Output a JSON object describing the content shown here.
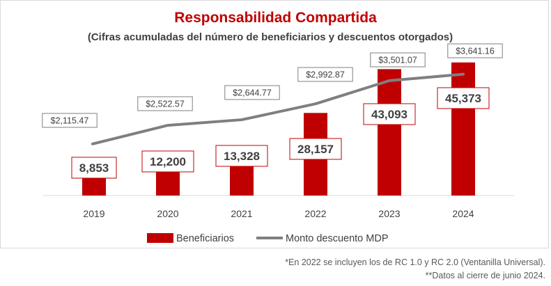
{
  "chart_data": {
    "type": "bar",
    "title": "Responsabilidad Compartida",
    "subtitle": "(Cifras acumuladas del número de beneficiarios y descuentos otorgados)",
    "categories": [
      "2019",
      "2020",
      "2021",
      "2022",
      "2023",
      "2024"
    ],
    "series": [
      {
        "name": "Beneficiarios",
        "type": "bar",
        "values": [
          8853,
          12200,
          13328,
          28157,
          43093,
          45373
        ],
        "labels": [
          "8,853",
          "12,200",
          "13,328",
          "28,157",
          "43,093",
          "45,373"
        ],
        "color": "#c00000"
      },
      {
        "name": "Monto descuento MDP",
        "type": "line",
        "values": [
          2115.47,
          2522.57,
          2644.77,
          2992.87,
          3501.07,
          3641.16
        ],
        "labels": [
          "$2,115.47",
          "$2,522.57",
          "$2,644.77",
          "$2,992.87",
          "$3,501.07",
          "$3,641.16"
        ],
        "color": "#7f7f7f"
      }
    ],
    "legend_position": "bottom",
    "grid": false
  },
  "notes": [
    "*En 2022 se incluyen los de RC 1.0 y RC 2.0 (Ventanilla Universal).",
    "**Datos al cierre de junio 2024."
  ]
}
